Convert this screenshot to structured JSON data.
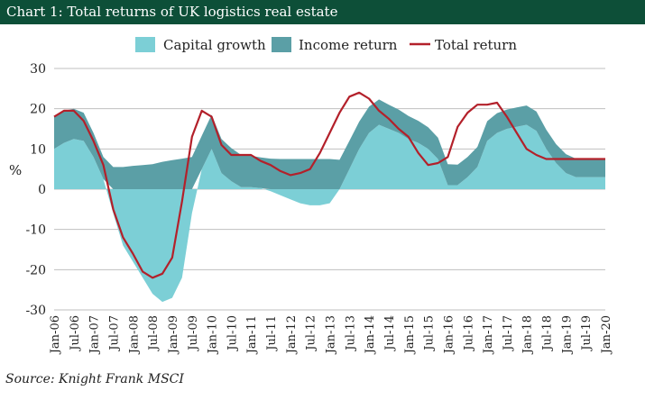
{
  "header": {
    "title": "Chart 1: Total returns of UK logistics real estate"
  },
  "source": "Source: Knight Frank MSCI",
  "colors": {
    "title_bar": "#0d4f38",
    "capital": "#7ccfd6",
    "income": "#5b9fa6",
    "total": "#b3202a",
    "grid": "#bfbfbf"
  },
  "chart_data": {
    "type": "area",
    "title": "Chart 1: Total returns of UK logistics real estate",
    "xlabel": "",
    "ylabel": "%",
    "ylim": [
      -30,
      30
    ],
    "yticks": [
      30,
      20,
      10,
      0,
      -10,
      -20,
      -30
    ],
    "grid": true,
    "legend_position": "top",
    "x_tick_labels": [
      "Jan-06",
      "Jul-06",
      "Jan-07",
      "Jul-07",
      "Jan-08",
      "Jul-08",
      "Jan-09",
      "Jul-09",
      "Jan-10",
      "Jul-10",
      "Jan-11",
      "Jul-11",
      "Jan-12",
      "Jul-12",
      "Jan-13",
      "Jul-13",
      "Jan-14",
      "Jul-14",
      "Jan-15",
      "Jul-15",
      "Jan-16",
      "Jul-16",
      "Jan-17",
      "Jul-17",
      "Jan-18",
      "Jul-18",
      "Jan-19",
      "Jul-19",
      "Jan-20"
    ],
    "x": [
      2006.0,
      2006.25,
      2006.5,
      2006.75,
      2007.0,
      2007.25,
      2007.5,
      2007.75,
      2008.0,
      2008.25,
      2008.5,
      2008.75,
      2009.0,
      2009.25,
      2009.5,
      2009.75,
      2010.0,
      2010.25,
      2010.5,
      2010.75,
      2011.0,
      2011.25,
      2011.5,
      2011.75,
      2012.0,
      2012.25,
      2012.5,
      2012.75,
      2013.0,
      2013.25,
      2013.5,
      2013.75,
      2014.0,
      2014.25,
      2014.5,
      2014.75,
      2015.0,
      2015.25,
      2015.5,
      2015.75,
      2016.0,
      2016.25,
      2016.5,
      2016.75,
      2017.0,
      2017.25,
      2017.5,
      2017.75,
      2018.0,
      2018.25,
      2018.5,
      2018.75,
      2019.0,
      2019.25,
      2019.5,
      2019.75,
      2020.0
    ],
    "series": [
      {
        "name": "Capital growth",
        "kind": "area",
        "values": [
          10,
          11.5,
          12.5,
          12,
          8,
          2.5,
          -6,
          -14,
          -18,
          -22,
          -26,
          -28,
          -27,
          -22,
          -6,
          5,
          10,
          4,
          2,
          0.5,
          0.5,
          0.3,
          -0.5,
          -1.5,
          -2.5,
          -3.5,
          -4,
          -4,
          -3.5,
          0,
          5,
          10,
          14,
          16,
          15,
          14,
          12.5,
          11.5,
          10,
          7.5,
          1,
          1,
          3,
          5.5,
          12,
          14,
          15,
          15.5,
          16,
          14.5,
          10,
          6.5,
          4,
          3,
          3,
          3,
          3
        ]
      },
      {
        "name": "Income return",
        "kind": "area",
        "values": [
          8,
          8,
          7.5,
          7,
          6,
          5.5,
          5.5,
          5.5,
          5.8,
          6,
          6.2,
          6.8,
          7.2,
          7.6,
          8,
          8.3,
          8.5,
          8.5,
          8.2,
          8,
          7.8,
          7.6,
          7.6,
          7.5,
          7.5,
          7.5,
          7.5,
          7.5,
          7.5,
          7.3,
          7,
          6.8,
          6.5,
          6.3,
          6,
          5.8,
          5.7,
          5.5,
          5.4,
          5.3,
          5.2,
          5.1,
          5,
          5,
          4.9,
          4.9,
          4.8,
          4.8,
          4.8,
          4.8,
          4.8,
          4.7,
          4.7,
          4.6,
          4.5,
          4.5,
          4.5
        ]
      },
      {
        "name": "Total return",
        "kind": "line",
        "values": [
          18,
          19.5,
          19.5,
          17,
          12,
          6,
          -5,
          -12,
          -16,
          -20.5,
          -22,
          -21,
          -17,
          -3,
          13,
          19.5,
          18,
          11,
          8.5,
          8.5,
          8.5,
          7,
          6,
          4.5,
          3.5,
          4,
          5,
          9,
          14,
          19,
          23,
          24,
          22.5,
          19.5,
          17.5,
          15,
          13,
          9,
          6,
          6.5,
          8,
          15.5,
          19,
          21,
          21,
          21.5,
          18,
          14,
          10,
          8.5,
          7.5,
          7.5,
          7.5,
          7.5,
          7.5,
          7.5,
          7.5
        ]
      }
    ]
  }
}
